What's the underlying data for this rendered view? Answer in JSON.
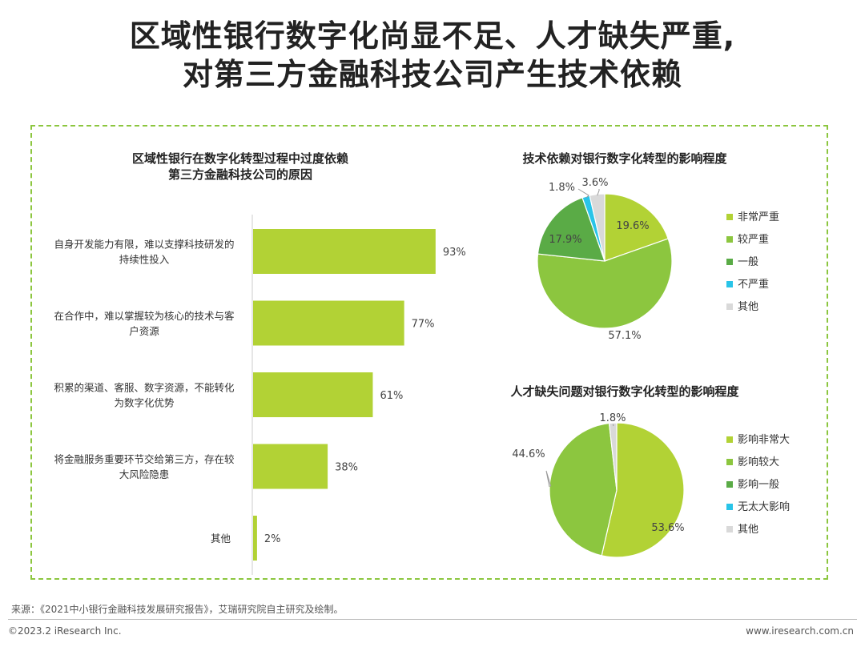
{
  "page": {
    "title_line1": "区域性银行数字化尚显不足、人才缺失严重,",
    "title_line2": "对第三方金融科技公司产生技术依赖"
  },
  "colors": {
    "green_light": "#b2d235",
    "green_mid": "#8cc63f",
    "green_dark": "#5aab46",
    "cyan": "#29c4e8",
    "gray": "#d9d9d9",
    "frame": "#8cc63f"
  },
  "chart_data": [
    {
      "type": "bar",
      "orientation": "horizontal",
      "title": "区域性银行在数字化转型过程中过度依赖\n第三方金融科技公司的原因",
      "categories": [
        "自身开发能力有限，难以支撑科技研发的\n持续性投入",
        "在合作中，难以掌握较为核心的技术与客\n户资源",
        "积累的渠道、客服、数字资源，不能转化\n为数字化优势",
        "将金融服务重要环节交给第三方，存在较\n大风险隐患",
        "其他"
      ],
      "values": [
        93,
        77,
        61,
        38,
        2
      ],
      "value_labels": [
        "93%",
        "77%",
        "61%",
        "38%",
        "2%"
      ],
      "xlim": [
        0,
        100
      ],
      "color": "#b2d235"
    },
    {
      "type": "pie",
      "title": "技术依赖对银行数字化转型的影响程度",
      "labels": [
        "非常严重",
        "较严重",
        "一般",
        "不严重",
        "其他"
      ],
      "values": [
        19.6,
        57.1,
        17.9,
        1.8,
        3.6
      ],
      "value_labels": [
        "19.6%",
        "57.1%",
        "17.9%",
        "1.8%",
        "3.6%"
      ],
      "colors": [
        "#b2d235",
        "#8cc63f",
        "#5aab46",
        "#29c4e8",
        "#d9d9d9"
      ],
      "legend": "right"
    },
    {
      "type": "pie",
      "title": "人才缺失问题对银行数字化转型的影响程度",
      "labels": [
        "影响非常大",
        "影响较大",
        "影响一般",
        "无太大影响",
        "其他"
      ],
      "values": [
        53.6,
        44.6,
        0,
        0,
        1.8
      ],
      "value_labels": [
        "53.6%",
        "44.6%",
        "",
        "",
        "1.8%"
      ],
      "colors": [
        "#b2d235",
        "#8cc63f",
        "#5aab46",
        "#29c4e8",
        "#d9d9d9"
      ],
      "legend": "right"
    }
  ],
  "footer": {
    "source": "来源：《2021中小银行金融科技发展研究报告》，艾瑞研究院自主研究及绘制。",
    "copyright": "©2023.2 iResearch Inc.",
    "website": "www.iresearch.com.cn"
  }
}
